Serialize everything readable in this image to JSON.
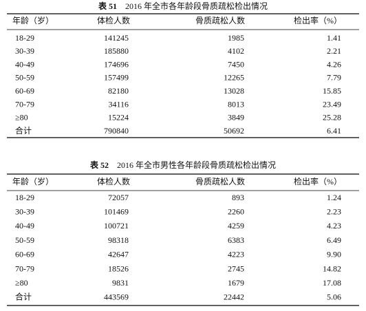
{
  "tables": [
    {
      "label": "表 51",
      "caption": "2016 年全市各年龄段骨质疏松检出情况",
      "header": [
        "年龄（岁）",
        "体检人数",
        "骨质疏松人数",
        "检出率（%）"
      ],
      "rows": [
        [
          "18-29",
          "141245",
          "1985",
          "1.41"
        ],
        [
          "30-39",
          "185880",
          "4102",
          "2.21"
        ],
        [
          "40-49",
          "174696",
          "7450",
          "4.26"
        ],
        [
          "50-59",
          "157499",
          "12265",
          "7.79"
        ],
        [
          "60-69",
          "82180",
          "13028",
          "15.85"
        ],
        [
          "70-79",
          "34116",
          "8013",
          "23.49"
        ],
        [
          "≥80",
          "15224",
          "3849",
          "25.28"
        ],
        [
          "合计",
          "790840",
          "50692",
          "6.41"
        ]
      ]
    },
    {
      "label": "表 52",
      "caption": "2016 年全市男性各年龄段骨质疏松检出情况",
      "header": [
        "年龄（岁）",
        "体检人数",
        "骨质疏松人数",
        "检出率（%）"
      ],
      "rows": [
        [
          "18-29",
          "72057",
          "893",
          "1.24"
        ],
        [
          "30-39",
          "101469",
          "2260",
          "2.23"
        ],
        [
          "40-49",
          "100721",
          "4259",
          "4.23"
        ],
        [
          "50-59",
          "98318",
          "6383",
          "6.49"
        ],
        [
          "60-69",
          "42647",
          "4223",
          "9.90"
        ],
        [
          "70-79",
          "18526",
          "2745",
          "14.82"
        ],
        [
          "≥80",
          "9831",
          "1679",
          "17.08"
        ],
        [
          "合计",
          "443569",
          "22442",
          "5.06"
        ]
      ]
    }
  ]
}
